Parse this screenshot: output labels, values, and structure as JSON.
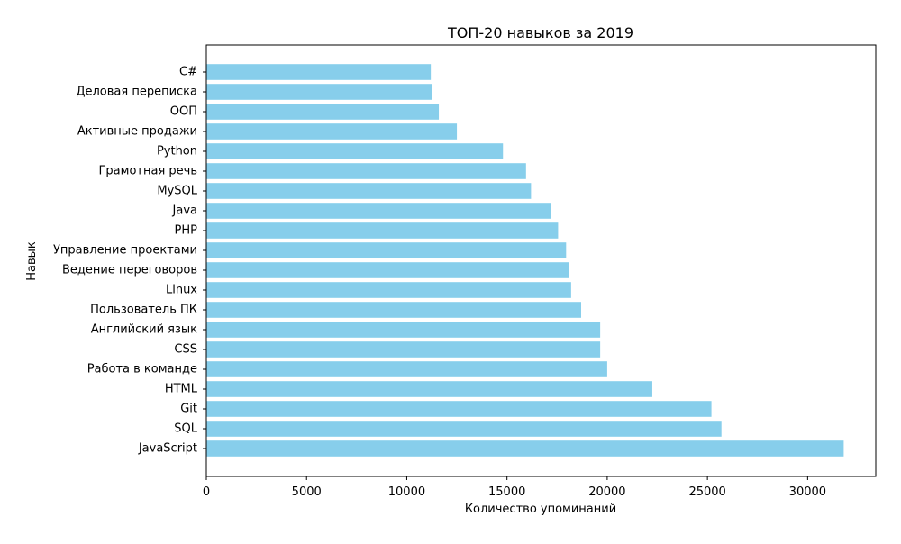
{
  "chart_data": {
    "type": "bar",
    "orientation": "horizontal",
    "title": "ТОП-20 навыков за 2019",
    "xlabel": "Количество упоминаний",
    "ylabel": "Навык",
    "xlim": [
      0,
      33400
    ],
    "xticks": [
      0,
      5000,
      10000,
      15000,
      20000,
      25000,
      30000
    ],
    "grid": false,
    "bar_color": "#87CEEB",
    "categories": [
      "JavaScript",
      "SQL",
      "Git",
      "HTML",
      "Работа в команде",
      "CSS",
      "Английский язык",
      "Пользователь ПК",
      "Linux",
      "Ведение переговоров",
      "Управление проектами",
      "PHP",
      "Java",
      "MySQL",
      "Грамотная речь",
      "Python",
      "Активные продажи",
      "ООП",
      "Деловая переписка",
      "C#"
    ],
    "values": [
      31800,
      25700,
      25200,
      22250,
      20000,
      19650,
      19650,
      18700,
      18200,
      18100,
      17950,
      17550,
      17200,
      16200,
      15950,
      14800,
      12500,
      11600,
      11250,
      11200
    ]
  }
}
